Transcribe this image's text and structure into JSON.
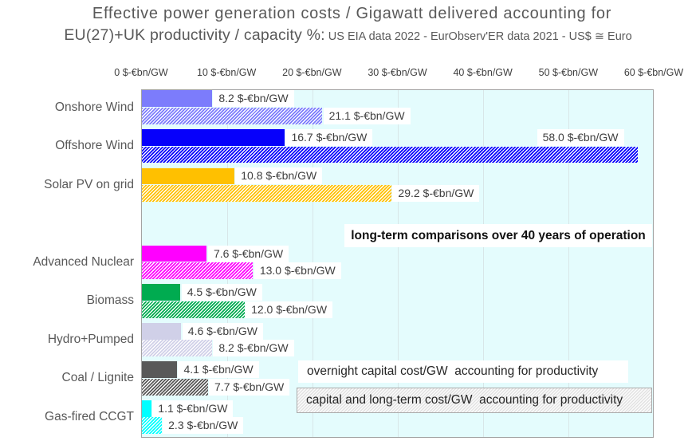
{
  "title": {
    "line1": "Effective power generation costs / Gigawatt delivered accounting for",
    "line2_main": "EU(27)+UK productivity / capacity %:",
    "line2_detail": " US EIA data 2022 - EurObserv'ER data 2021 - US$ ≅ Euro"
  },
  "chart_data": {
    "type": "bar",
    "orientation": "horizontal",
    "title": "Effective power generation costs / Gigawatt delivered accounting for EU(27)+UK productivity / capacity %: US EIA data 2022 - EurObserv'ER data 2021 - US$ ≅ Euro",
    "x_axis": {
      "position": "top",
      "range": [
        0,
        60
      ],
      "ticks": [
        0,
        10,
        20,
        30,
        40,
        50,
        60
      ],
      "tick_suffix": " $-€bn/GW"
    },
    "value_suffix": " $-€bn/GW",
    "grid": true,
    "plot_background": "#e4fcfd",
    "categories": [
      "Onshore Wind",
      "Offshore Wind",
      "Solar PV on grid",
      "",
      "Advanced Nuclear",
      "Biomass",
      "Hydro+Pumped",
      "Coal / Lignite",
      "Gas-fired CCGT"
    ],
    "category_colors": [
      "#7c7cfc",
      "#0600fb",
      "#ffc000",
      null,
      "#ff00ff",
      "#00ab50",
      "#d0d0e8",
      "#595959",
      "#00ffff"
    ],
    "series": [
      {
        "name": "overnight capital cost/GW  accounting for productivity",
        "style": "solid",
        "values": [
          8.2,
          16.7,
          10.8,
          null,
          7.6,
          4.5,
          4.6,
          4.1,
          1.1
        ]
      },
      {
        "name": "capital and long-term cost/GW  accounting for productivity",
        "style": "hatched",
        "values": [
          21.1,
          58.0,
          29.2,
          null,
          13.0,
          12.0,
          8.2,
          7.7,
          2.3
        ]
      }
    ],
    "annotations": [
      "long-term comparisons over 40 years of operation",
      "overnight capital cost/GW  accounting for productivity",
      "capital and long-term cost/GW  accounting for productivity"
    ]
  },
  "annotations": {
    "longterm": "long-term comparisons over 40 years of operation",
    "overnight": "overnight capital cost/GW  accounting for productivity",
    "capital": "capital and long-term cost/GW  accounting for productivity"
  }
}
